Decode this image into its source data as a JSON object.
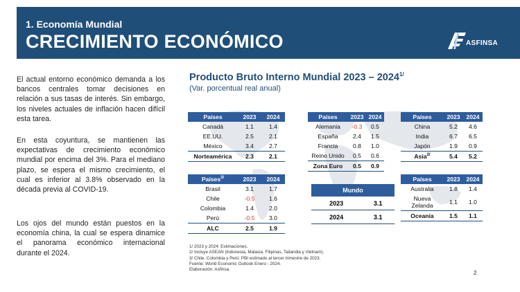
{
  "header": {
    "section": "1. Economía Mundial",
    "title": "CRECIMIENTO ECONÓMICO",
    "logo_text": "ASFINSA"
  },
  "body": {
    "p1": "El actual entorno económico demanda a los bancos centrales tomar decisiones en relación a sus tasas de interés. Sin embargo, los niveles actuales de inflación hacen difícil esta tarea.",
    "p2": "En esta coyuntura, se mantienen las expectativas de crecimiento económico mundial por encima del 3%. Para el mediano plazo, se espera el mismo crecimiento, el cual es inferior al 3.8% observado en la década previa al COVID-19.",
    "p3": "Los ojos del mundo están puestos en la economía china, la cual se espera dinamice el panorama económico internacional durante el 2024."
  },
  "chart": {
    "title": "Producto Bruto Interno Mundial 2023 – 2024",
    "title_sup": "1/",
    "subtitle": "(Var. porcentual real anual)"
  },
  "colors": {
    "band": "#1f4e79",
    "table_header": "#2e5d9e",
    "negative": "#e03a2c"
  },
  "tables": {
    "norteamerica": {
      "head": [
        "Países",
        "2023",
        "2024"
      ],
      "rows": [
        [
          "Canadá",
          "1.1",
          "1.4"
        ],
        [
          "EE.UU.",
          "2.5",
          "2.1"
        ],
        [
          "México",
          "3.4",
          "2.7"
        ]
      ],
      "total": [
        "Norteamérica",
        "2.3",
        "2.1"
      ]
    },
    "europa": {
      "head": [
        "Países",
        "2023",
        "2024"
      ],
      "rows": [
        [
          "Alemania",
          "-0.3",
          "0.5"
        ],
        [
          "España",
          "2.4",
          "1.5"
        ],
        [
          "Francia",
          "0.8",
          "1.0"
        ],
        [
          "Reino Unido",
          "0.5",
          "0.6"
        ]
      ],
      "total": [
        "Zona Euro",
        "0.5",
        "0.9"
      ]
    },
    "asia": {
      "head": [
        "Países",
        "2023",
        "2024"
      ],
      "rows": [
        [
          "China",
          "5.2",
          "4.6"
        ],
        [
          "India",
          "6.7",
          "6.5"
        ],
        [
          "Japón",
          "1.9",
          "0.9"
        ]
      ],
      "total": [
        "Asia",
        "5.4",
        "5.2"
      ],
      "total_sup": "2/"
    },
    "alc": {
      "head": [
        "Países",
        "2023",
        "2024"
      ],
      "head_sup": "3/",
      "rows": [
        [
          "Brasil",
          "3.1",
          "1.7"
        ],
        [
          "Chile",
          "-0.5",
          "1.6"
        ],
        [
          "Colombia",
          "1.4",
          "2.0"
        ],
        [
          "Perú",
          "-0.5",
          "3.0"
        ]
      ],
      "total": [
        "ALC",
        "2.5",
        "1.9"
      ]
    },
    "mundo": {
      "head": "Mundo",
      "rows": [
        [
          "2023",
          "3.1"
        ],
        [
          "2024",
          "3.1"
        ]
      ]
    },
    "oceania": {
      "head": [
        "Países",
        "2023",
        "2024"
      ],
      "rows": [
        [
          "Australia",
          "1.8",
          "1.4"
        ],
        [
          "Nueva Zelanda",
          "1.1",
          "1.0"
        ]
      ],
      "total": [
        "Oceanía",
        "1.5",
        "1.1"
      ]
    }
  },
  "notes": {
    "n1": "1/ 2023 y 2024: Estimaciones.",
    "n2": "2/ Incluye ASEAN (Indonesia, Malasia, Filipinas, Tailandia y Vietnam).",
    "n3": "3/ Chile, Colombia y Perú: PBI estimado al tercer trimestre de 2023.",
    "n4": "Fuente: World Economic Outlook Enero - 2024.",
    "n5": "Elaboración: Asfinsa."
  },
  "page_number": "2"
}
